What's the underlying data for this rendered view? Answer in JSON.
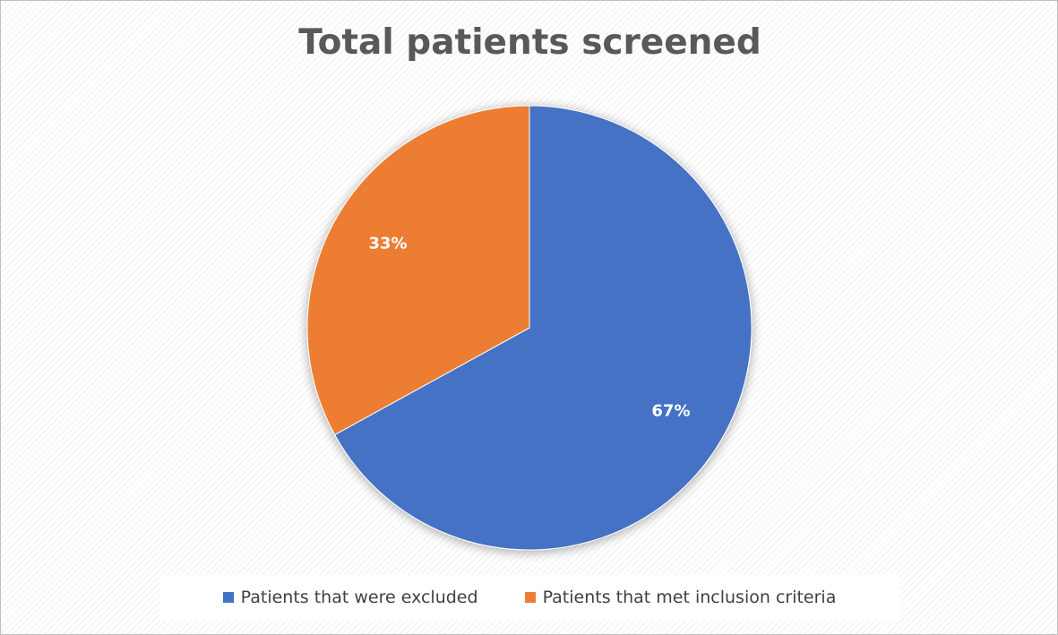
{
  "chart_data": {
    "type": "pie",
    "title": "Total patients screened",
    "categories": [
      "Patients that were excluded",
      "Patients that met inclusion criteria"
    ],
    "values": [
      67,
      33
    ],
    "labels": [
      "67%",
      "33%"
    ],
    "colors": [
      "#4472C4",
      "#ED7D31"
    ],
    "legend_position": "bottom"
  }
}
